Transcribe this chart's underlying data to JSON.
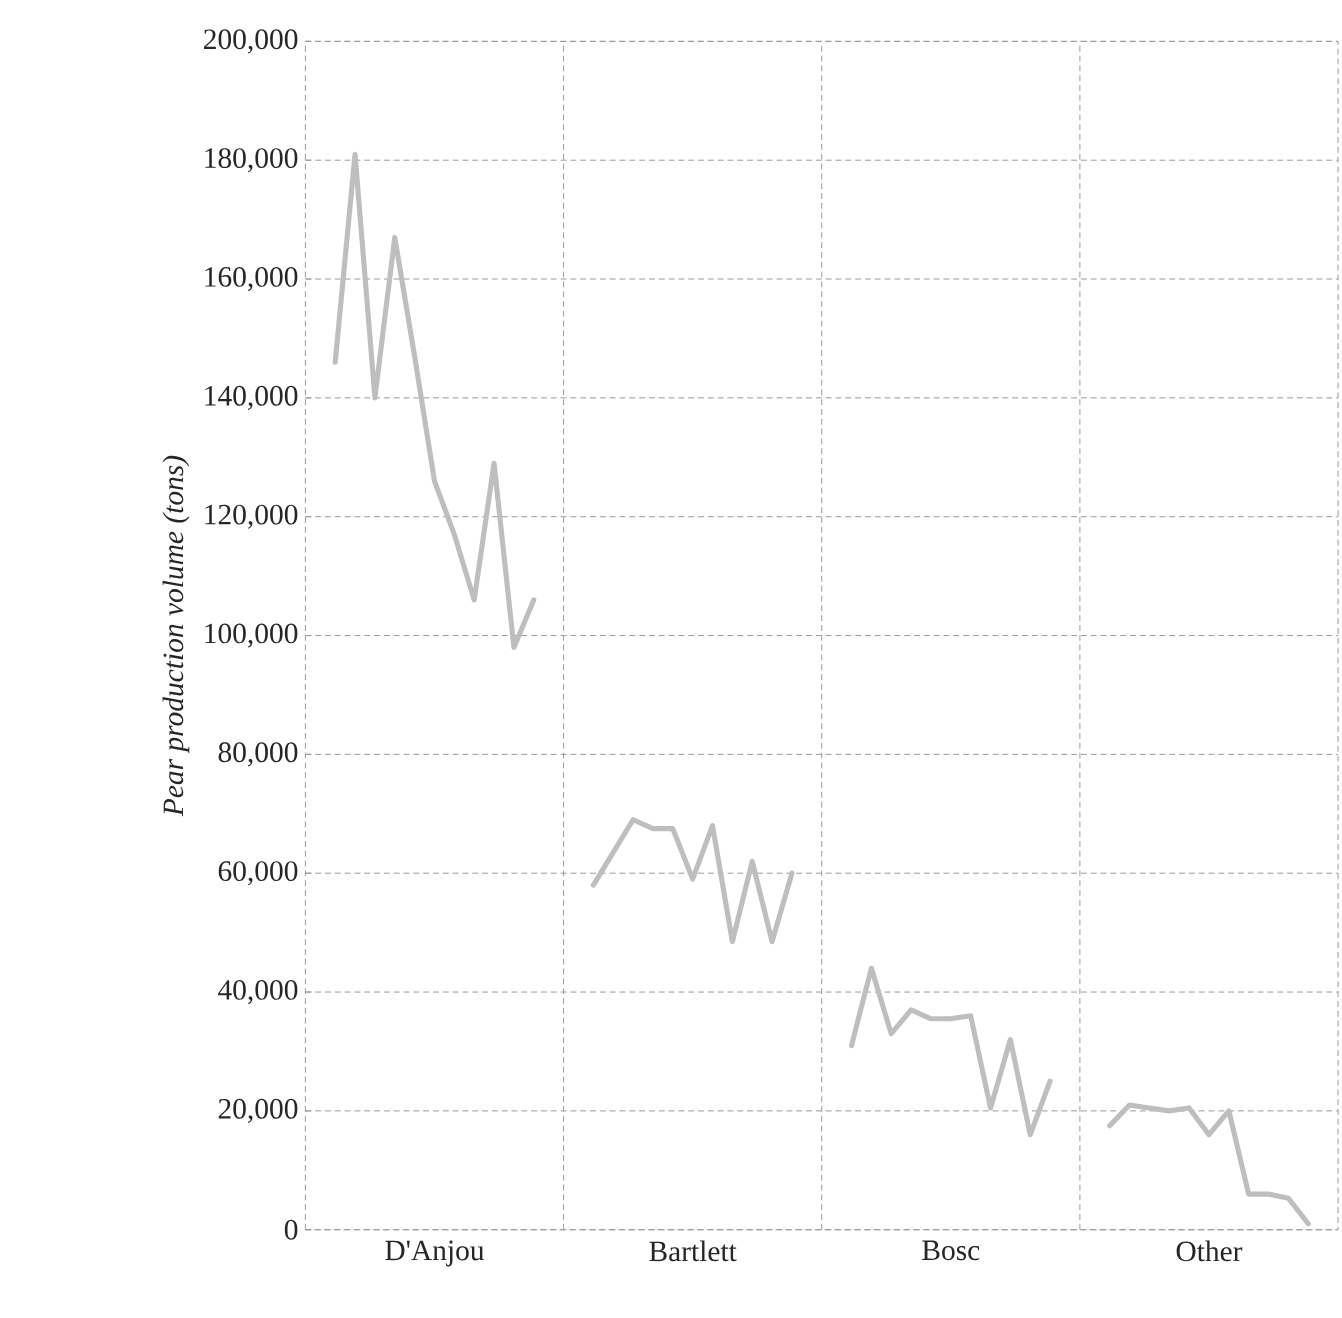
{
  "chart_data": {
    "type": "line",
    "ylabel": "Pear production volume (tons)",
    "categories": [
      null,
      null,
      null,
      null,
      null,
      null,
      "D'Anjou",
      null,
      null,
      null,
      null,
      null,
      null,
      null,
      null,
      null,
      null,
      null,
      null,
      "Bartlett",
      null,
      null,
      null,
      null,
      null,
      null,
      null,
      null,
      null,
      null,
      null,
      null,
      "Bosc",
      null,
      null,
      null,
      null,
      null,
      null,
      null,
      null,
      null,
      null,
      null,
      null,
      "Other",
      null,
      null,
      null,
      null,
      null,
      null
    ],
    "ylim": [
      0,
      200000
    ],
    "yticks": [
      {
        "value": 0,
        "label": "0"
      },
      {
        "value": 20000,
        "label": "20,000"
      },
      {
        "value": 40000,
        "label": "40,000"
      },
      {
        "value": 60000,
        "label": "60,000"
      },
      {
        "value": 80000,
        "label": "80,000"
      },
      {
        "value": 100000,
        "label": "100,000"
      },
      {
        "value": 120000,
        "label": "120,000"
      },
      {
        "value": 140000,
        "label": "140,000"
      },
      {
        "value": 160000,
        "label": "160,000"
      },
      {
        "value": 180000,
        "label": "180,000"
      },
      {
        "value": 200000,
        "label": "200,000"
      }
    ],
    "grid": "y",
    "series": [
      {
        "color": "#bdbec0",
        "values": [
          null,
          146000,
          181000,
          140000,
          167000,
          147000,
          126000,
          117000,
          106000,
          129000,
          98000,
          106000,
          null,
          null,
          null,
          null,
          null,
          null,
          null,
          null,
          null,
          null,
          null,
          null,
          null,
          null,
          null,
          null,
          null,
          null,
          null,
          null,
          null,
          null,
          null,
          null,
          null,
          null,
          null,
          null,
          null,
          null,
          null,
          null,
          null,
          null,
          null,
          null,
          null,
          null,
          null,
          null
        ]
      },
      {
        "color": "#bdbec0",
        "values": [
          null,
          null,
          null,
          null,
          null,
          null,
          null,
          null,
          null,
          null,
          null,
          null,
          null,
          null,
          58000,
          63500,
          69000,
          67500,
          67500,
          59000,
          68000,
          48500,
          62000,
          48500,
          60000,
          null,
          null,
          null,
          null,
          null,
          null,
          null,
          null,
          null,
          null,
          null,
          null,
          null,
          null,
          null,
          null,
          null,
          null,
          null,
          null,
          null,
          null,
          null,
          null,
          null,
          null,
          null
        ]
      },
      {
        "color": "#bdbec0",
        "values": [
          null,
          null,
          null,
          null,
          null,
          null,
          null,
          null,
          null,
          null,
          null,
          null,
          null,
          null,
          null,
          null,
          null,
          null,
          null,
          null,
          null,
          null,
          null,
          null,
          null,
          null,
          null,
          31000,
          44000,
          33000,
          37000,
          35500,
          35500,
          36000,
          20500,
          32000,
          16000,
          25000,
          null,
          null,
          null,
          null,
          null,
          null,
          null,
          null,
          null,
          null,
          null,
          null,
          null,
          null
        ]
      },
      {
        "color": "#bdbec0",
        "values": [
          null,
          null,
          null,
          null,
          null,
          null,
          null,
          null,
          null,
          null,
          null,
          null,
          null,
          null,
          null,
          null,
          null,
          null,
          null,
          null,
          null,
          null,
          null,
          null,
          null,
          null,
          null,
          null,
          null,
          null,
          null,
          null,
          null,
          null,
          null,
          null,
          null,
          null,
          null,
          null,
          17500,
          21000,
          20500,
          20000,
          20500,
          16000,
          20000,
          6000,
          6000,
          5300,
          1000,
          null
        ]
      }
    ]
  }
}
